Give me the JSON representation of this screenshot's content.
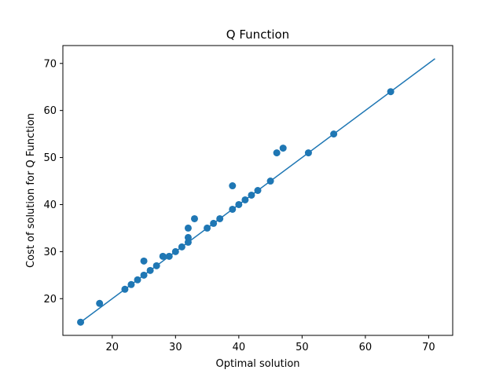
{
  "chart_data": {
    "type": "scatter",
    "title": "Q Function",
    "xlabel": "Optimal solution",
    "ylabel": "Cost of solution for Q Function",
    "xlim": [
      12.2,
      73.8
    ],
    "ylim": [
      12.2,
      73.8
    ],
    "xticks": [
      20,
      30,
      40,
      50,
      60,
      70
    ],
    "yticks": [
      20,
      30,
      40,
      50,
      60,
      70
    ],
    "grid": false,
    "colors": {
      "marker": "#1f77b4",
      "line": "#1f77b4"
    },
    "series": [
      {
        "kind": "line",
        "x": [
          15,
          71
        ],
        "y": [
          15,
          71
        ]
      },
      {
        "kind": "scatter",
        "points": [
          [
            15,
            15
          ],
          [
            18,
            19
          ],
          [
            22,
            22
          ],
          [
            23,
            23
          ],
          [
            24,
            24
          ],
          [
            25,
            25
          ],
          [
            25,
            28
          ],
          [
            26,
            26
          ],
          [
            27,
            27
          ],
          [
            28,
            29
          ],
          [
            29,
            29
          ],
          [
            30,
            30
          ],
          [
            31,
            31
          ],
          [
            32,
            32
          ],
          [
            32,
            33
          ],
          [
            32,
            35
          ],
          [
            33,
            37
          ],
          [
            35,
            35
          ],
          [
            36,
            36
          ],
          [
            37,
            37
          ],
          [
            39,
            39
          ],
          [
            39,
            44
          ],
          [
            40,
            40
          ],
          [
            41,
            41
          ],
          [
            42,
            42
          ],
          [
            43,
            43
          ],
          [
            45,
            45
          ],
          [
            46,
            51
          ],
          [
            47,
            52
          ],
          [
            51,
            51
          ],
          [
            55,
            55
          ],
          [
            64,
            64
          ]
        ]
      }
    ]
  }
}
